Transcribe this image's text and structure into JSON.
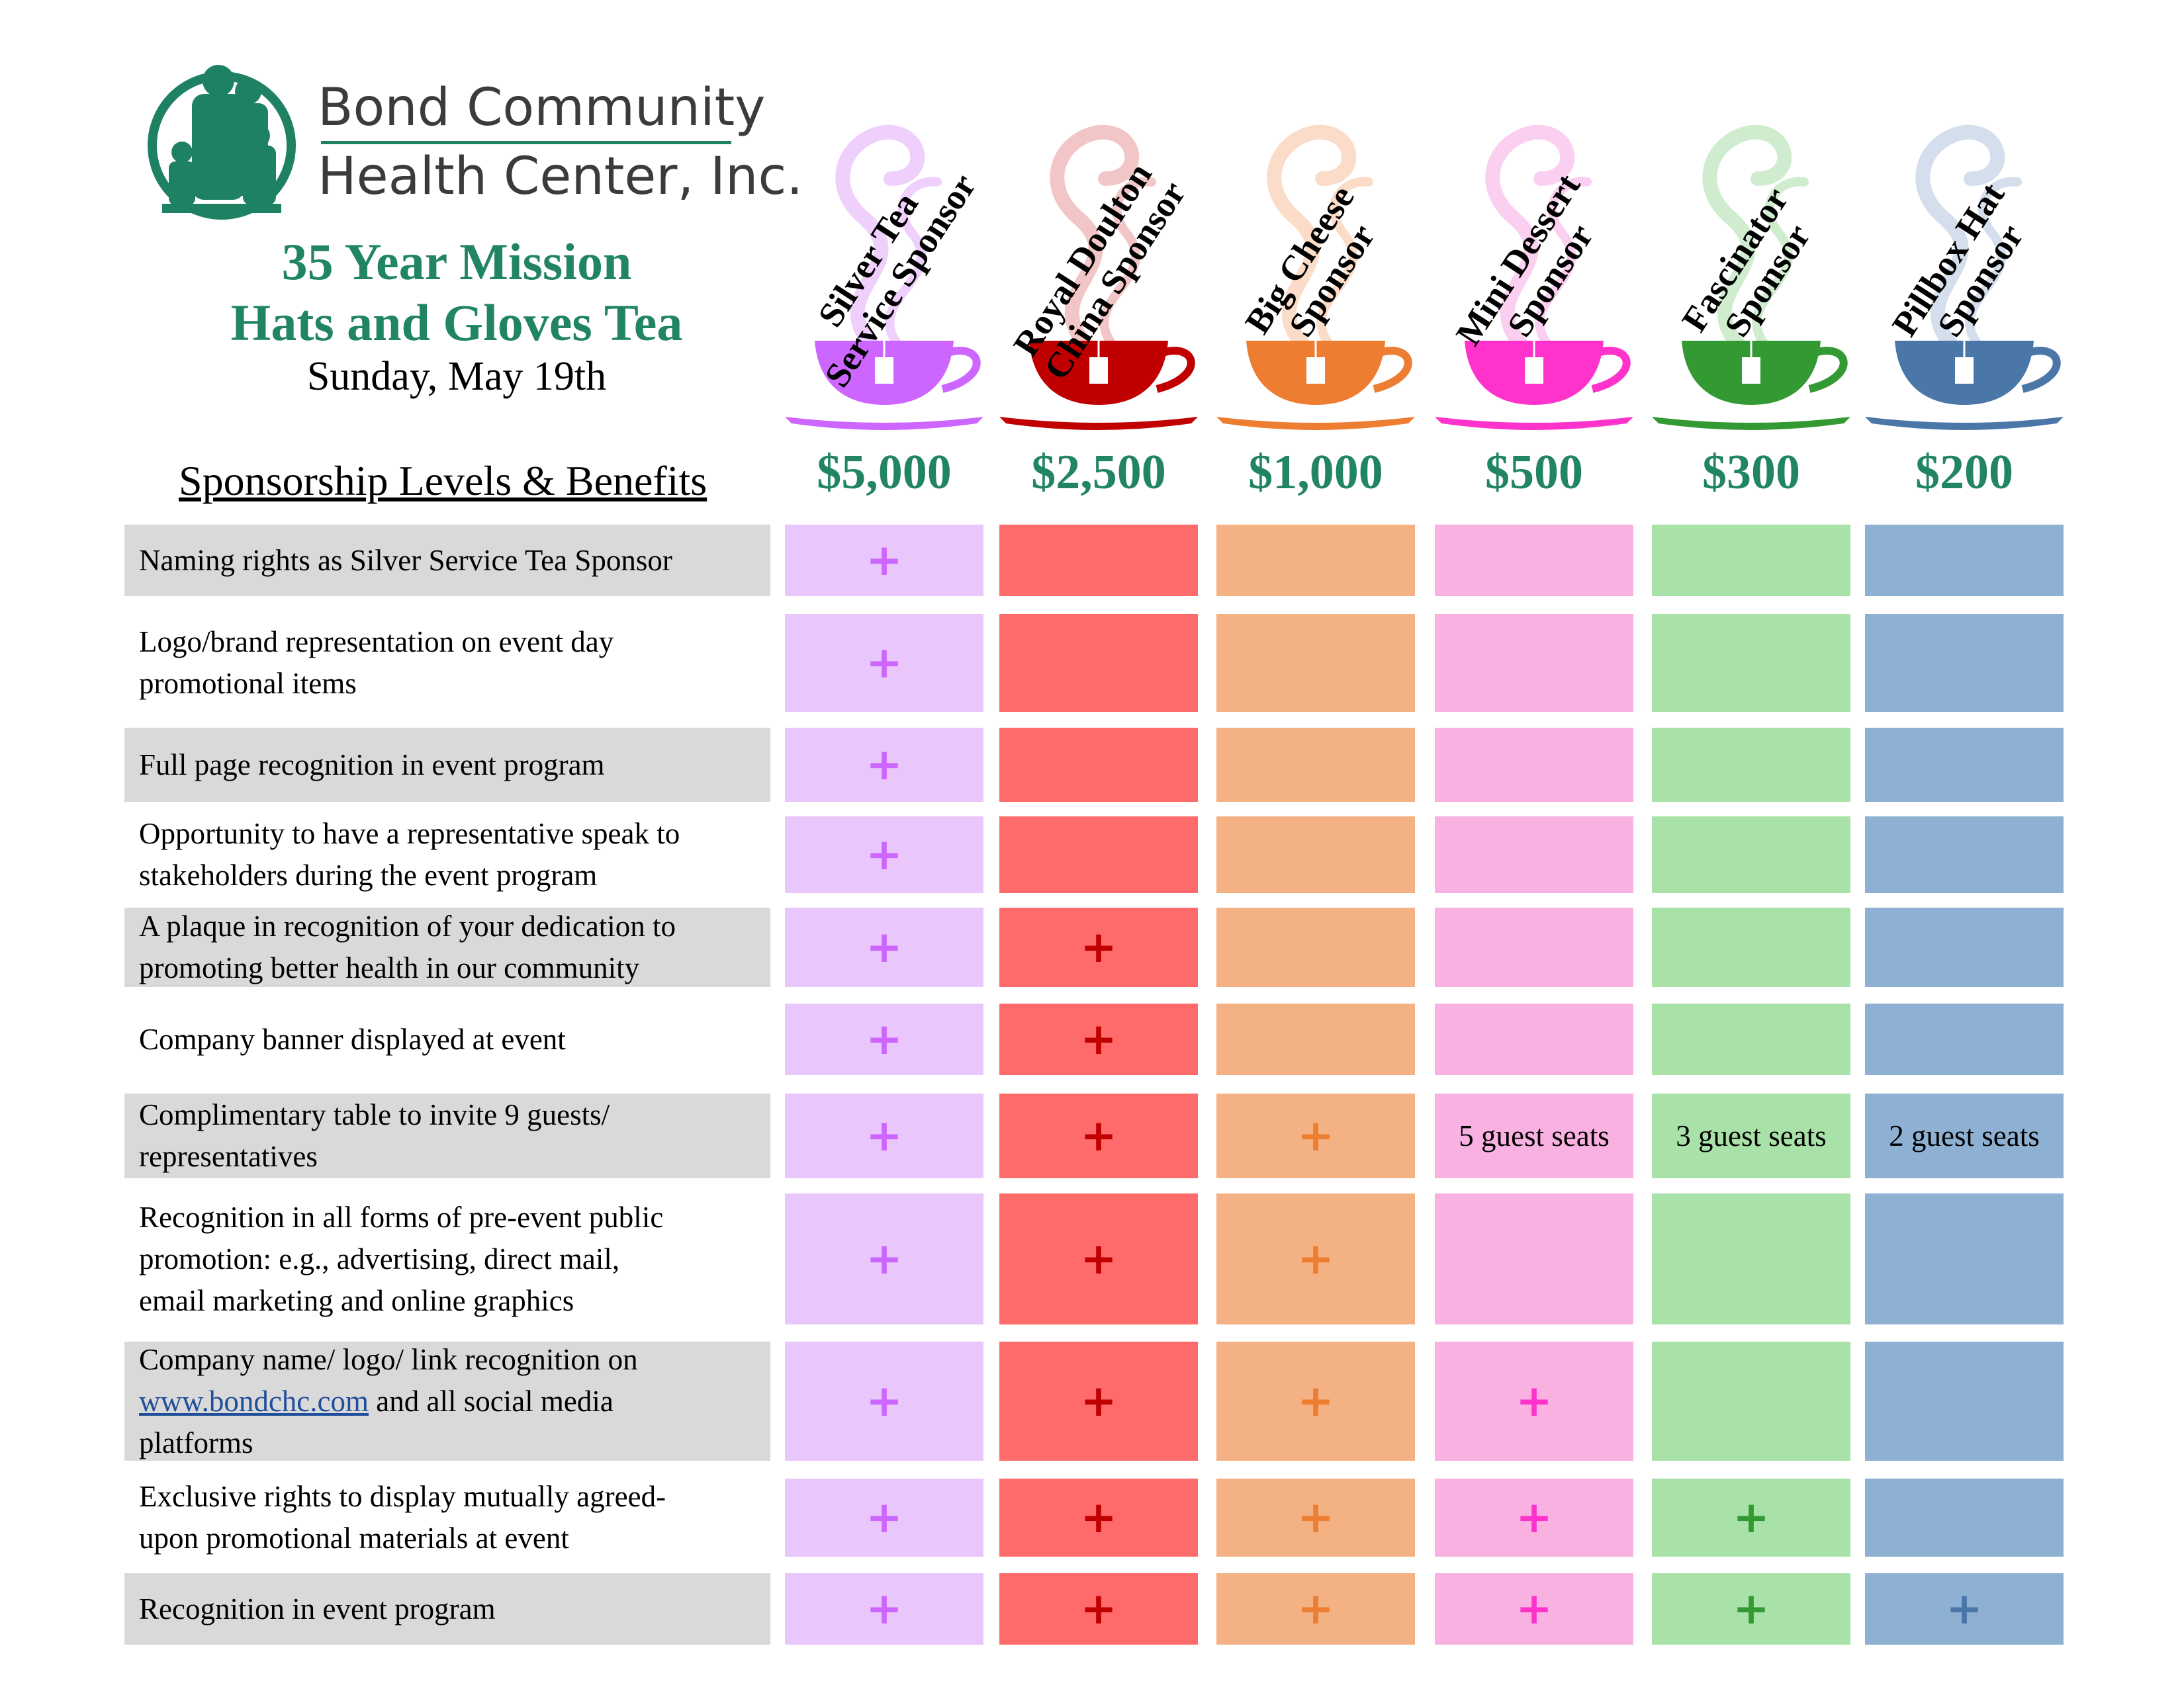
{
  "organization": {
    "name_line1": "Bond Community",
    "name_line2": "Health Center, Inc."
  },
  "event": {
    "title_line1": "35 Year Mission",
    "title_line2": "Hats and Gloves Tea",
    "date": "Sunday, May 19th"
  },
  "table_heading": "Sponsorship Levels & Benefits",
  "levels": [
    {
      "name_line1": "Silver Tea",
      "name_line2": "Service Sponsor",
      "price": "$5,000",
      "cup_color": "#cc66ff",
      "cell_color": "#e9c6fc",
      "mark_color": "#cc66ff",
      "steam_color": "#efcffc"
    },
    {
      "name_line1": "Royal Doulton",
      "name_line2": "China Sponsor",
      "price": "$2,500",
      "cup_color": "#c00000",
      "cell_color": "#ff6b6b",
      "mark_color": "#c00000",
      "steam_color": "#f2c6c6"
    },
    {
      "name_line1": "Big Cheese",
      "name_line2": "Sponsor",
      "price": "$1,000",
      "cup_color": "#ed7d31",
      "cell_color": "#f4b183",
      "mark_color": "#ed7d31",
      "steam_color": "#fbdcc8"
    },
    {
      "name_line1": "Mini Dessert",
      "name_line2": "Sponsor",
      "price": "$500",
      "cup_color": "#ff33cc",
      "cell_color": "#f8b1e0",
      "mark_color": "#ff33cc",
      "steam_color": "#fbcff0"
    },
    {
      "name_line1": "Fascinator",
      "name_line2": "Sponsor",
      "price": "$300",
      "cup_color": "#339933",
      "cell_color": "#a9e2a9",
      "mark_color": "#339933",
      "steam_color": "#cfeccf"
    },
    {
      "name_line1": "Pillbox Hat",
      "name_line2": "Sponsor",
      "price": "$200",
      "cup_color": "#4a76a8",
      "cell_color": "#8eb1d3",
      "mark_color": "#4a76a8",
      "steam_color": "#d4deec"
    }
  ],
  "benefits": [
    {
      "lines": [
        "Naming rights as Silver Service Tea Sponsor"
      ],
      "cells": [
        "+",
        "",
        "",
        "",
        "",
        ""
      ]
    },
    {
      "lines": [
        "Logo/brand representation on event day",
        "promotional items"
      ],
      "cells": [
        "+",
        "",
        "",
        "",
        "",
        ""
      ]
    },
    {
      "lines": [
        "Full page recognition in event program"
      ],
      "cells": [
        "+",
        "",
        "",
        "",
        "",
        ""
      ]
    },
    {
      "lines": [
        "Opportunity to have a representative speak to",
        "stakeholders during the event program"
      ],
      "cells": [
        "+",
        "",
        "",
        "",
        "",
        ""
      ]
    },
    {
      "lines": [
        "A plaque in recognition of your dedication to",
        "promoting better health in our community"
      ],
      "cells": [
        "+",
        "+",
        "",
        "",
        "",
        ""
      ]
    },
    {
      "lines": [
        "Company banner displayed at event"
      ],
      "cells": [
        "+",
        "+",
        "",
        "",
        "",
        ""
      ]
    },
    {
      "lines": [
        "Complimentary table to invite 9 guests/",
        "representatives"
      ],
      "cells": [
        "+",
        "+",
        "+",
        "5 guest seats",
        "3 guest seats",
        "2 guest seats"
      ]
    },
    {
      "lines": [
        "Recognition in all forms of pre-event public",
        "promotion: e.g., advertising, direct mail,",
        "email marketing and  online graphics"
      ],
      "cells": [
        "+",
        "+",
        "+",
        "",
        "",
        ""
      ]
    },
    {
      "lines": [
        "Company name/ logo/ link recognition on",
        "and all social media",
        "platforms"
      ],
      "link": "www.bondchc.com",
      "cells": [
        "+",
        "+",
        "+",
        "+",
        "",
        ""
      ]
    },
    {
      "lines": [
        "Exclusive rights to display mutually agreed-",
        "upon promotional materials at event"
      ],
      "cells": [
        "+",
        "+",
        "+",
        "+",
        "+",
        ""
      ]
    },
    {
      "lines": [
        "Recognition in event  program"
      ],
      "cells": [
        "+",
        "+",
        "+",
        "+",
        "+",
        "+"
      ]
    }
  ]
}
